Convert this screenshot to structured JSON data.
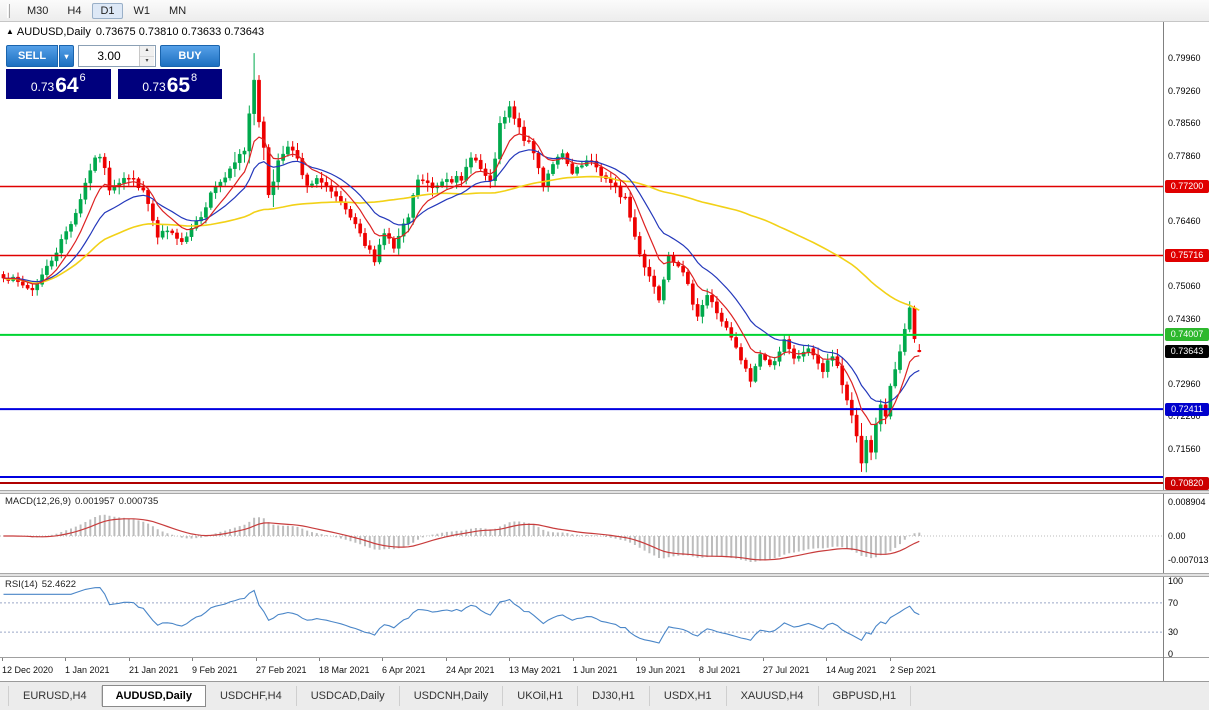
{
  "toolbar": {
    "timeframes": [
      {
        "label": "M30",
        "active": false
      },
      {
        "label": "H4",
        "active": false
      },
      {
        "label": "D1",
        "active": true
      },
      {
        "label": "W1",
        "active": false
      },
      {
        "label": "MN",
        "active": false
      }
    ]
  },
  "chart_header": {
    "collapse_icon": "▲",
    "title": "AUDUSD,Daily",
    "ohlc": "0.73675 0.73810 0.73633 0.73643"
  },
  "trade_panel": {
    "sell_label": "SELL",
    "buy_label": "BUY",
    "volume": "3.00",
    "dropdown_icon": "▾",
    "spin_up_icon": "▴",
    "spin_down_icon": "▾",
    "sell_price": {
      "prefix": "0.73",
      "big": "64",
      "sup": "6"
    },
    "buy_price": {
      "prefix": "0.73",
      "big": "65",
      "sup": "8"
    }
  },
  "price_scale": {
    "labels": [
      {
        "text": "0.79960",
        "price": 0.7996
      },
      {
        "text": "0.79260",
        "price": 0.7926
      },
      {
        "text": "0.78560",
        "price": 0.7856
      },
      {
        "text": "0.77860",
        "price": 0.7786
      },
      {
        "text": "0.76460",
        "price": 0.7646
      },
      {
        "text": "0.75060",
        "price": 0.7506
      },
      {
        "text": "0.74360",
        "price": 0.7436
      },
      {
        "text": "0.72960",
        "price": 0.7296
      },
      {
        "text": "0.72260",
        "price": 0.7226
      },
      {
        "text": "0.71560",
        "price": 0.7156
      }
    ],
    "badges": [
      {
        "text": "0.77200",
        "price": 0.772,
        "bg": "#e00000",
        "fg": "#ffffff"
      },
      {
        "text": "0.75716",
        "price": 0.75716,
        "bg": "#e00000",
        "fg": "#ffffff"
      },
      {
        "text": "0.74007",
        "price": 0.74007,
        "bg": "#2db82d",
        "fg": "#ffffff"
      },
      {
        "text": "0.73643",
        "price": 0.73643,
        "bg": "#000000",
        "fg": "#ffffff"
      },
      {
        "text": "0.72411",
        "price": 0.72411,
        "bg": "#0000cc",
        "fg": "#ffffff"
      },
      {
        "text": "0.70820",
        "price": 0.7082,
        "bg": "#cc0000",
        "fg": "#ffffff"
      }
    ]
  },
  "chart_data": {
    "type": "candlestick",
    "symbol": "AUDUSD",
    "timeframe": "Daily",
    "bars": 191,
    "price_min": 0.7067,
    "price_max": 0.8074,
    "up_color": "#00a94c",
    "down_color": "#ee0000",
    "last_candle": [
      0.73675,
      0.7381,
      0.73633,
      0.73643
    ],
    "forced_high": [
      52,
      0.8007
    ],
    "forced_low": [
      178,
      0.7106
    ],
    "close_anchors": [
      [
        0,
        0.753
      ],
      [
        3,
        0.7512
      ],
      [
        6,
        0.7498
      ],
      [
        9,
        0.7545
      ],
      [
        12,
        0.7602
      ],
      [
        15,
        0.7665
      ],
      [
        18,
        0.7758
      ],
      [
        20,
        0.7788
      ],
      [
        22,
        0.7718
      ],
      [
        25,
        0.7742
      ],
      [
        28,
        0.7726
      ],
      [
        30,
        0.7682
      ],
      [
        32,
        0.7607
      ],
      [
        34,
        0.7622
      ],
      [
        36,
        0.7602
      ],
      [
        38,
        0.7618
      ],
      [
        41,
        0.7662
      ],
      [
        44,
        0.7722
      ],
      [
        47,
        0.7748
      ],
      [
        50,
        0.7802
      ],
      [
        52,
        0.7962
      ],
      [
        53,
        0.7872
      ],
      [
        55,
        0.7708
      ],
      [
        57,
        0.7772
      ],
      [
        59,
        0.7816
      ],
      [
        61,
        0.7772
      ],
      [
        63,
        0.7716
      ],
      [
        66,
        0.7736
      ],
      [
        69,
        0.7692
      ],
      [
        72,
        0.7652
      ],
      [
        75,
        0.7592
      ],
      [
        77,
        0.7566
      ],
      [
        79,
        0.7622
      ],
      [
        81,
        0.7586
      ],
      [
        84,
        0.7652
      ],
      [
        86,
        0.7736
      ],
      [
        89,
        0.7716
      ],
      [
        92,
        0.7746
      ],
      [
        95,
        0.7726
      ],
      [
        97,
        0.7792
      ],
      [
        99,
        0.7756
      ],
      [
        101,
        0.7722
      ],
      [
        103,
        0.7846
      ],
      [
        105,
        0.7886
      ],
      [
        107,
        0.7842
      ],
      [
        110,
        0.7792
      ],
      [
        112,
        0.7726
      ],
      [
        114,
        0.7772
      ],
      [
        116,
        0.7786
      ],
      [
        118,
        0.7746
      ],
      [
        121,
        0.7772
      ],
      [
        123,
        0.7762
      ],
      [
        126,
        0.7722
      ],
      [
        129,
        0.7696
      ],
      [
        131,
        0.7612
      ],
      [
        133,
        0.7552
      ],
      [
        136,
        0.7482
      ],
      [
        138,
        0.7576
      ],
      [
        140,
        0.7556
      ],
      [
        142,
        0.7502
      ],
      [
        144,
        0.7446
      ],
      [
        146,
        0.7486
      ],
      [
        149,
        0.7432
      ],
      [
        151,
        0.7392
      ],
      [
        153,
        0.7346
      ],
      [
        155,
        0.7302
      ],
      [
        157,
        0.7362
      ],
      [
        159,
        0.7332
      ],
      [
        162,
        0.7386
      ],
      [
        164,
        0.7346
      ],
      [
        166,
        0.7366
      ],
      [
        168,
        0.7362
      ],
      [
        170,
        0.7322
      ],
      [
        172,
        0.7356
      ],
      [
        174,
        0.7292
      ],
      [
        176,
        0.7232
      ],
      [
        178,
        0.7132
      ],
      [
        179,
        0.7162
      ],
      [
        180,
        0.7146
      ],
      [
        181,
        0.7196
      ],
      [
        182,
        0.7242
      ],
      [
        183,
        0.7226
      ],
      [
        184,
        0.7292
      ],
      [
        185,
        0.7322
      ],
      [
        186,
        0.7356
      ],
      [
        187,
        0.7412
      ],
      [
        188,
        0.7456
      ],
      [
        189,
        0.7398
      ],
      [
        190,
        0.73643
      ]
    ],
    "volatility_anchors": [
      [
        0,
        0.0018
      ],
      [
        18,
        0.0023
      ],
      [
        32,
        0.0026
      ],
      [
        45,
        0.002
      ],
      [
        51,
        0.0046
      ],
      [
        56,
        0.004
      ],
      [
        60,
        0.0026
      ],
      [
        75,
        0.002
      ],
      [
        86,
        0.0028
      ],
      [
        103,
        0.0026
      ],
      [
        118,
        0.0016
      ],
      [
        130,
        0.0032
      ],
      [
        136,
        0.0024
      ],
      [
        150,
        0.002
      ],
      [
        163,
        0.0018
      ],
      [
        176,
        0.003
      ],
      [
        178,
        0.0042
      ],
      [
        183,
        0.0028
      ],
      [
        188,
        0.0024
      ],
      [
        190,
        0.0018
      ]
    ],
    "moving_averages": [
      {
        "name": "ma-slow-yellow",
        "method": "sma",
        "period": 75,
        "color": "#f2d117",
        "width": 1.6
      },
      {
        "name": "ma-mid-blue",
        "method": "ema",
        "period": 17,
        "color": "#2438bb",
        "width": 1.2
      },
      {
        "name": "ma-fast-red",
        "method": "ema",
        "period": 8,
        "color": "#dd2222",
        "width": 1.2
      }
    ],
    "levels": [
      {
        "price": 0.772,
        "color": "#e00000",
        "width": 1.6
      },
      {
        "price": 0.75716,
        "color": "#e00000",
        "width": 1.6
      },
      {
        "price": 0.74007,
        "color": "#00d432",
        "width": 2
      },
      {
        "price": 0.72411,
        "color": "#0000e0",
        "width": 2
      },
      {
        "price": 0.7095,
        "color": "#0000e0",
        "width": 2
      },
      {
        "price": 0.7082,
        "color": "#b00000",
        "width": 2
      }
    ],
    "x_axis_dates": [
      "12 Dec 2020",
      "1 Jan 2021",
      "21 Jan 2021",
      "9 Feb 2021",
      "27 Feb 2021",
      "18 Mar 2021",
      "6 Apr 2021",
      "24 Apr 2021",
      "13 May 2021",
      "1 Jun 2021",
      "19 Jun 2021",
      "8 Jul 2021",
      "27 Jul 2021",
      "14 Aug 2021",
      "2 Sep 2021"
    ]
  },
  "macd": {
    "label": "MACD(12,26,9)",
    "value_main": "0.001957",
    "value_signal": "0.000735",
    "axis": [
      "0.008904",
      "0.00",
      "-0.007013"
    ],
    "histogram_color": "#bdbdbd",
    "signal_color": "#c83c3c"
  },
  "rsi": {
    "label": "RSI(14)",
    "value": "52.4622",
    "axis": [
      "100",
      "70",
      "30",
      "0"
    ],
    "levels": [
      70,
      30
    ],
    "line_color": "#4a86c8"
  },
  "tabs": [
    {
      "label": "EURUSD,H4",
      "active": false
    },
    {
      "label": "AUDUSD,Daily",
      "active": true
    },
    {
      "label": "USDCHF,H4",
      "active": false
    },
    {
      "label": "USDCAD,Daily",
      "active": false
    },
    {
      "label": "USDCNH,Daily",
      "active": false
    },
    {
      "label": "UKOil,H1",
      "active": false
    },
    {
      "label": "DJ30,H1",
      "active": false
    },
    {
      "label": "USDX,H1",
      "active": false
    },
    {
      "label": "XAUUSD,H4",
      "active": false
    },
    {
      "label": "GBPUSD,H1",
      "active": false
    }
  ]
}
